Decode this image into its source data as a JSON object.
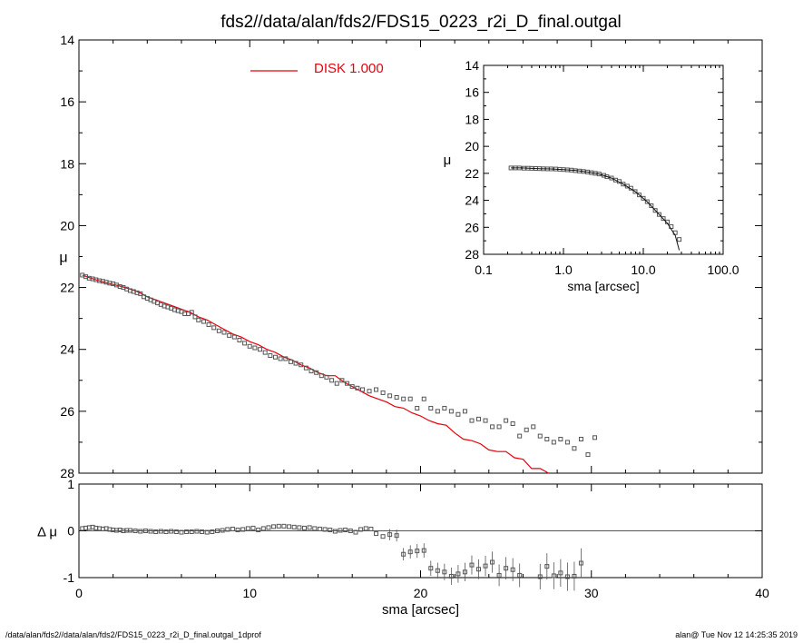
{
  "title": "fds2//data/alan/fds2/FDS15_0223_r2i_D_final.outgal",
  "footer_left": "/data/alan/fds2//data/alan/fds2/FDS15_0223_r2i_D_final.outgal_1dprof",
  "footer_right": "alan@  Tue Nov 12 14:25:35 2019",
  "colors": {
    "model": "#e8000b",
    "data": "#555555",
    "axes": "#000000"
  },
  "chart_data": [
    {
      "type": "scatter",
      "panel": "main",
      "xlabel": "",
      "ylabel": "μ",
      "xlim": [
        0,
        40
      ],
      "ylim": [
        28,
        14
      ],
      "y_inverted": true,
      "xticks": [
        0,
        10,
        20,
        30,
        40
      ],
      "yticks": [
        14,
        16,
        18,
        20,
        22,
        24,
        26,
        28
      ],
      "legend": {
        "label": "DISK  1.000",
        "placement": "top-center"
      },
      "series": [
        {
          "name": "",
          "kind": "points",
          "x": [
            0.2,
            0.4,
            0.6,
            0.8,
            1.0,
            1.2,
            1.4,
            1.6,
            1.8,
            2.0,
            2.2,
            2.4,
            2.6,
            2.8,
            3.0,
            3.2,
            3.4,
            3.6,
            3.8,
            4.0,
            4.2,
            4.4,
            4.6,
            4.8,
            5.0,
            5.2,
            5.4,
            5.6,
            5.8,
            6.0,
            6.2,
            6.4,
            6.6,
            6.8,
            7.0,
            7.3,
            7.6,
            7.9,
            8.2,
            8.5,
            8.8,
            9.1,
            9.4,
            9.7,
            10.0,
            10.3,
            10.6,
            10.9,
            11.2,
            11.5,
            11.8,
            12.1,
            12.4,
            12.7,
            13.0,
            13.3,
            13.6,
            13.9,
            14.2,
            14.5,
            14.8,
            15.1,
            15.4,
            15.7,
            16.0,
            16.3,
            16.6,
            17.0,
            17.4,
            17.8,
            18.2,
            18.6,
            19.0,
            19.4,
            19.8,
            20.2,
            20.6,
            21.0,
            21.4,
            21.8,
            22.2,
            22.6,
            23.0,
            23.4,
            23.8,
            24.2,
            24.6,
            25.0,
            25.4,
            25.8,
            26.2,
            26.6,
            27.0,
            27.4,
            27.8,
            28.2,
            28.6,
            29.0,
            29.4,
            29.8,
            30.2
          ],
          "y": [
            21.6,
            21.65,
            21.7,
            21.72,
            21.75,
            21.78,
            21.8,
            21.83,
            21.86,
            21.88,
            21.92,
            21.97,
            22.0,
            22.05,
            22.1,
            22.13,
            22.17,
            22.2,
            22.3,
            22.35,
            22.4,
            22.45,
            22.5,
            22.55,
            22.6,
            22.63,
            22.67,
            22.72,
            22.75,
            22.78,
            22.85,
            22.85,
            22.8,
            22.95,
            23.05,
            23.1,
            23.2,
            23.3,
            23.4,
            23.45,
            23.55,
            23.6,
            23.7,
            23.8,
            23.9,
            23.95,
            24.0,
            24.1,
            24.2,
            24.25,
            24.3,
            24.3,
            24.4,
            24.45,
            24.5,
            24.6,
            24.7,
            24.75,
            24.85,
            24.9,
            25.0,
            25.1,
            25.0,
            25.1,
            25.2,
            25.25,
            25.3,
            25.35,
            25.3,
            25.4,
            25.5,
            25.55,
            25.6,
            25.6,
            25.9,
            25.6,
            25.9,
            26.0,
            25.9,
            26.0,
            26.1,
            26.0,
            26.3,
            26.25,
            26.3,
            26.5,
            26.5,
            26.3,
            26.4,
            26.8,
            26.6,
            26.5,
            26.8,
            26.9,
            27.0,
            26.9,
            27.0,
            27.2,
            26.9,
            27.4,
            26.85
          ]
        },
        {
          "name": "DISK  1.000",
          "kind": "line",
          "x": [
            0.2,
            0.6,
            1.0,
            1.5,
            2.0,
            2.5,
            3.0,
            3.5,
            4.0,
            4.5,
            5.0,
            5.5,
            6.0,
            6.5,
            7.0,
            7.5,
            8.0,
            8.5,
            9.0,
            9.5,
            10.0,
            10.5,
            11.0,
            11.5,
            12.0,
            12.5,
            13.0,
            13.5,
            14.0,
            14.5,
            15.0,
            15.5,
            16.0,
            16.5,
            17.0,
            17.5,
            18.0,
            18.5,
            19.0,
            19.5,
            20.0,
            20.5,
            21.0,
            21.5,
            22.0,
            22.5,
            23.0,
            23.5,
            24.0,
            24.5,
            25.0,
            25.5,
            26.0,
            26.5,
            27.0,
            27.5
          ],
          "y": [
            21.6,
            21.68,
            21.75,
            21.83,
            21.9,
            21.97,
            22.05,
            22.15,
            22.3,
            22.4,
            22.5,
            22.6,
            22.7,
            22.8,
            22.95,
            23.05,
            23.2,
            23.35,
            23.5,
            23.6,
            23.75,
            23.85,
            24.0,
            24.1,
            24.25,
            24.35,
            24.5,
            24.6,
            24.75,
            24.85,
            24.85,
            25.05,
            25.2,
            25.35,
            25.5,
            25.6,
            25.7,
            25.85,
            25.9,
            26.05,
            26.15,
            26.3,
            26.4,
            26.45,
            26.7,
            26.9,
            26.95,
            27.05,
            27.25,
            27.3,
            27.3,
            27.5,
            27.55,
            27.85,
            27.85,
            28.2
          ]
        }
      ]
    },
    {
      "type": "scatter",
      "panel": "residual",
      "xlabel": "sma [arcsec]",
      "ylabel": "Δ μ",
      "xlim": [
        0,
        40
      ],
      "ylim": [
        -1,
        1
      ],
      "xticks": [
        0,
        10,
        20,
        30,
        40
      ],
      "yticks": [
        -1,
        0,
        1
      ],
      "reference_line": 0,
      "series": [
        {
          "name": "",
          "x": [
            0.2,
            0.4,
            0.6,
            0.8,
            1.0,
            1.2,
            1.4,
            1.6,
            1.8,
            2.0,
            2.2,
            2.4,
            2.6,
            2.8,
            3.0,
            3.3,
            3.6,
            3.9,
            4.2,
            4.5,
            4.8,
            5.1,
            5.4,
            5.7,
            6.0,
            6.3,
            6.6,
            6.9,
            7.2,
            7.5,
            7.8,
            8.1,
            8.4,
            8.7,
            9.0,
            9.3,
            9.6,
            9.9,
            10.2,
            10.5,
            10.8,
            11.1,
            11.4,
            11.7,
            12.0,
            12.3,
            12.6,
            12.9,
            13.2,
            13.5,
            13.8,
            14.1,
            14.4,
            14.7,
            15.0,
            15.3,
            15.6,
            15.9,
            16.2,
            16.5,
            16.8,
            17.1,
            17.4,
            17.8,
            18.2,
            18.6,
            19.0,
            19.4,
            19.8,
            20.2,
            20.6,
            21.0,
            21.4,
            21.8,
            22.2,
            22.6,
            23.0,
            23.4,
            23.8,
            24.2,
            24.6,
            25.0,
            25.4,
            25.8,
            26.2,
            26.6,
            27.0,
            27.4,
            27.8,
            28.2,
            28.6,
            29.0,
            29.4
          ],
          "y": [
            0.05,
            0.06,
            0.07,
            0.08,
            0.06,
            0.05,
            0.04,
            0.05,
            0.03,
            0.02,
            0.01,
            0.02,
            0.0,
            0.01,
            0.01,
            0.0,
            -0.01,
            0.0,
            -0.01,
            -0.02,
            -0.01,
            -0.02,
            -0.01,
            -0.02,
            -0.03,
            -0.02,
            -0.02,
            -0.01,
            -0.02,
            -0.03,
            -0.02,
            0.0,
            0.01,
            0.03,
            0.04,
            0.02,
            0.03,
            0.05,
            0.06,
            0.02,
            0.05,
            0.07,
            0.09,
            0.1,
            0.1,
            0.09,
            0.08,
            0.07,
            0.06,
            0.07,
            0.05,
            0.04,
            0.03,
            0.02,
            -0.01,
            0.01,
            0.02,
            0.0,
            -0.03,
            0.03,
            0.05,
            0.04,
            -0.06,
            -0.12,
            -0.08,
            -0.1,
            -0.5,
            -0.45,
            -0.43,
            -0.42,
            -0.8,
            -0.85,
            -0.88,
            -0.97,
            -0.92,
            -0.88,
            -0.73,
            -0.82,
            -0.75,
            -0.67,
            -0.95,
            -0.8,
            -0.83,
            -0.95,
            -1.05,
            -1.02,
            -0.98,
            -0.76,
            -0.96,
            -0.9,
            -0.98,
            -0.97,
            -0.69
          ]
        }
      ]
    },
    {
      "type": "line",
      "panel": "inset",
      "xlabel": "sma [arcsec]",
      "ylabel": "μ",
      "xscale": "log",
      "xlim": [
        0.1,
        100.0
      ],
      "ylim": [
        28,
        14
      ],
      "y_inverted": true,
      "xticks": [
        "0.1",
        "1.0",
        "10.0",
        "100.0"
      ],
      "yticks": [
        14,
        16,
        18,
        20,
        22,
        24,
        26,
        28
      ],
      "series": [
        {
          "name": "",
          "kind": "points",
          "x": [
            0.22,
            0.25,
            0.28,
            0.32,
            0.36,
            0.4,
            0.45,
            0.5,
            0.56,
            0.63,
            0.7,
            0.8,
            0.9,
            1.0,
            1.12,
            1.26,
            1.41,
            1.58,
            1.78,
            2.0,
            2.24,
            2.5,
            2.8,
            3.2,
            3.5,
            4.0,
            4.5,
            5.0,
            5.6,
            6.3,
            7.0,
            7.9,
            8.9,
            10.0,
            11.2,
            12.6,
            14.1,
            15.8,
            17.8,
            20.0,
            22.4,
            25.1,
            28.2
          ],
          "y": [
            21.6,
            21.6,
            21.6,
            21.62,
            21.62,
            21.63,
            21.64,
            21.65,
            21.66,
            21.67,
            21.67,
            21.68,
            21.7,
            21.72,
            21.74,
            21.76,
            21.8,
            21.83,
            21.86,
            21.9,
            21.95,
            22.0,
            22.05,
            22.15,
            22.25,
            22.35,
            22.5,
            22.6,
            22.8,
            22.95,
            23.1,
            23.35,
            23.6,
            23.85,
            24.1,
            24.4,
            24.75,
            25.05,
            25.35,
            25.6,
            25.95,
            26.4,
            26.9
          ]
        },
        {
          "name": "",
          "kind": "line",
          "x": [
            0.22,
            0.3,
            0.4,
            0.5,
            0.7,
            1.0,
            1.4,
            2.0,
            2.8,
            4.0,
            5.6,
            7.9,
            11.2,
            15.8,
            20.0,
            25.1,
            28.2
          ],
          "y": [
            21.6,
            21.6,
            21.63,
            21.65,
            21.67,
            21.72,
            21.78,
            21.9,
            22.05,
            22.35,
            22.8,
            23.35,
            24.1,
            25.05,
            25.7,
            26.6,
            27.7
          ]
        }
      ]
    }
  ]
}
